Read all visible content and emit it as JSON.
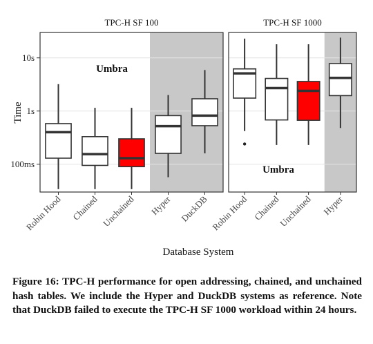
{
  "chart_data": {
    "type": "boxplot",
    "ylabel": "Time",
    "xlabel": "Database System",
    "yscale": "log",
    "ylim_seconds": [
      0.03,
      30
    ],
    "yticks": [
      {
        "label": "100ms",
        "value": 0.1
      },
      {
        "label": "1s",
        "value": 1
      },
      {
        "label": "10s",
        "value": 10
      }
    ],
    "grid": true,
    "panels": [
      {
        "title": "TPC-H SF 100",
        "annotation": "Umbra",
        "categories": [
          "Robin Hood",
          "Chained",
          "Unchained",
          "Hyper",
          "DuckDB"
        ],
        "shaded_categories": [
          "Hyper",
          "DuckDB"
        ],
        "boxes": [
          {
            "name": "Robin Hood",
            "whisker_low": 0.034,
            "q1": 0.13,
            "median": 0.4,
            "q3": 0.58,
            "whisker_high": 3.2,
            "fill": "#ffffff"
          },
          {
            "name": "Chained",
            "whisker_low": 0.034,
            "q1": 0.095,
            "median": 0.155,
            "q3": 0.33,
            "whisker_high": 1.15,
            "fill": "#ffffff"
          },
          {
            "name": "Unchained",
            "whisker_low": 0.034,
            "q1": 0.09,
            "median": 0.13,
            "q3": 0.3,
            "whisker_high": 1.15,
            "fill": "#ff0000"
          },
          {
            "name": "Hyper",
            "whisker_low": 0.057,
            "q1": 0.16,
            "median": 0.52,
            "q3": 0.82,
            "whisker_high": 2.0,
            "fill": "#ffffff"
          },
          {
            "name": "DuckDB",
            "whisker_low": 0.16,
            "q1": 0.53,
            "median": 0.82,
            "q3": 1.7,
            "whisker_high": 5.9,
            "fill": "#ffffff"
          }
        ]
      },
      {
        "title": "TPC-H SF 1000",
        "annotation": "Umbra",
        "categories": [
          "Robin Hood",
          "Chained",
          "Unchained",
          "Hyper"
        ],
        "shaded_categories": [
          "Hyper"
        ],
        "boxes": [
          {
            "name": "Robin Hood",
            "whisker_low": 0.42,
            "q1": 1.75,
            "median": 5.1,
            "q3": 6.2,
            "whisker_high": 23,
            "outliers": [
              0.24
            ],
            "fill": "#ffffff"
          },
          {
            "name": "Chained",
            "whisker_low": 0.23,
            "q1": 0.68,
            "median": 2.7,
            "q3": 4.1,
            "whisker_high": 18,
            "fill": "#ffffff"
          },
          {
            "name": "Unchained",
            "whisker_low": 0.23,
            "q1": 0.67,
            "median": 2.4,
            "q3": 3.6,
            "whisker_high": 18,
            "fill": "#ff0000"
          },
          {
            "name": "Hyper",
            "whisker_low": 0.48,
            "q1": 1.95,
            "median": 4.2,
            "q3": 7.8,
            "whisker_high": 24,
            "fill": "#ffffff"
          }
        ]
      }
    ]
  },
  "caption": "Figure 16: TPC-H performance for open addressing, chained, and unchained hash tables. We include the Hyper and DuckDB systems as reference. Note that DuckDB failed to execute the TPC-H SF 1000 workload within 24 hours."
}
